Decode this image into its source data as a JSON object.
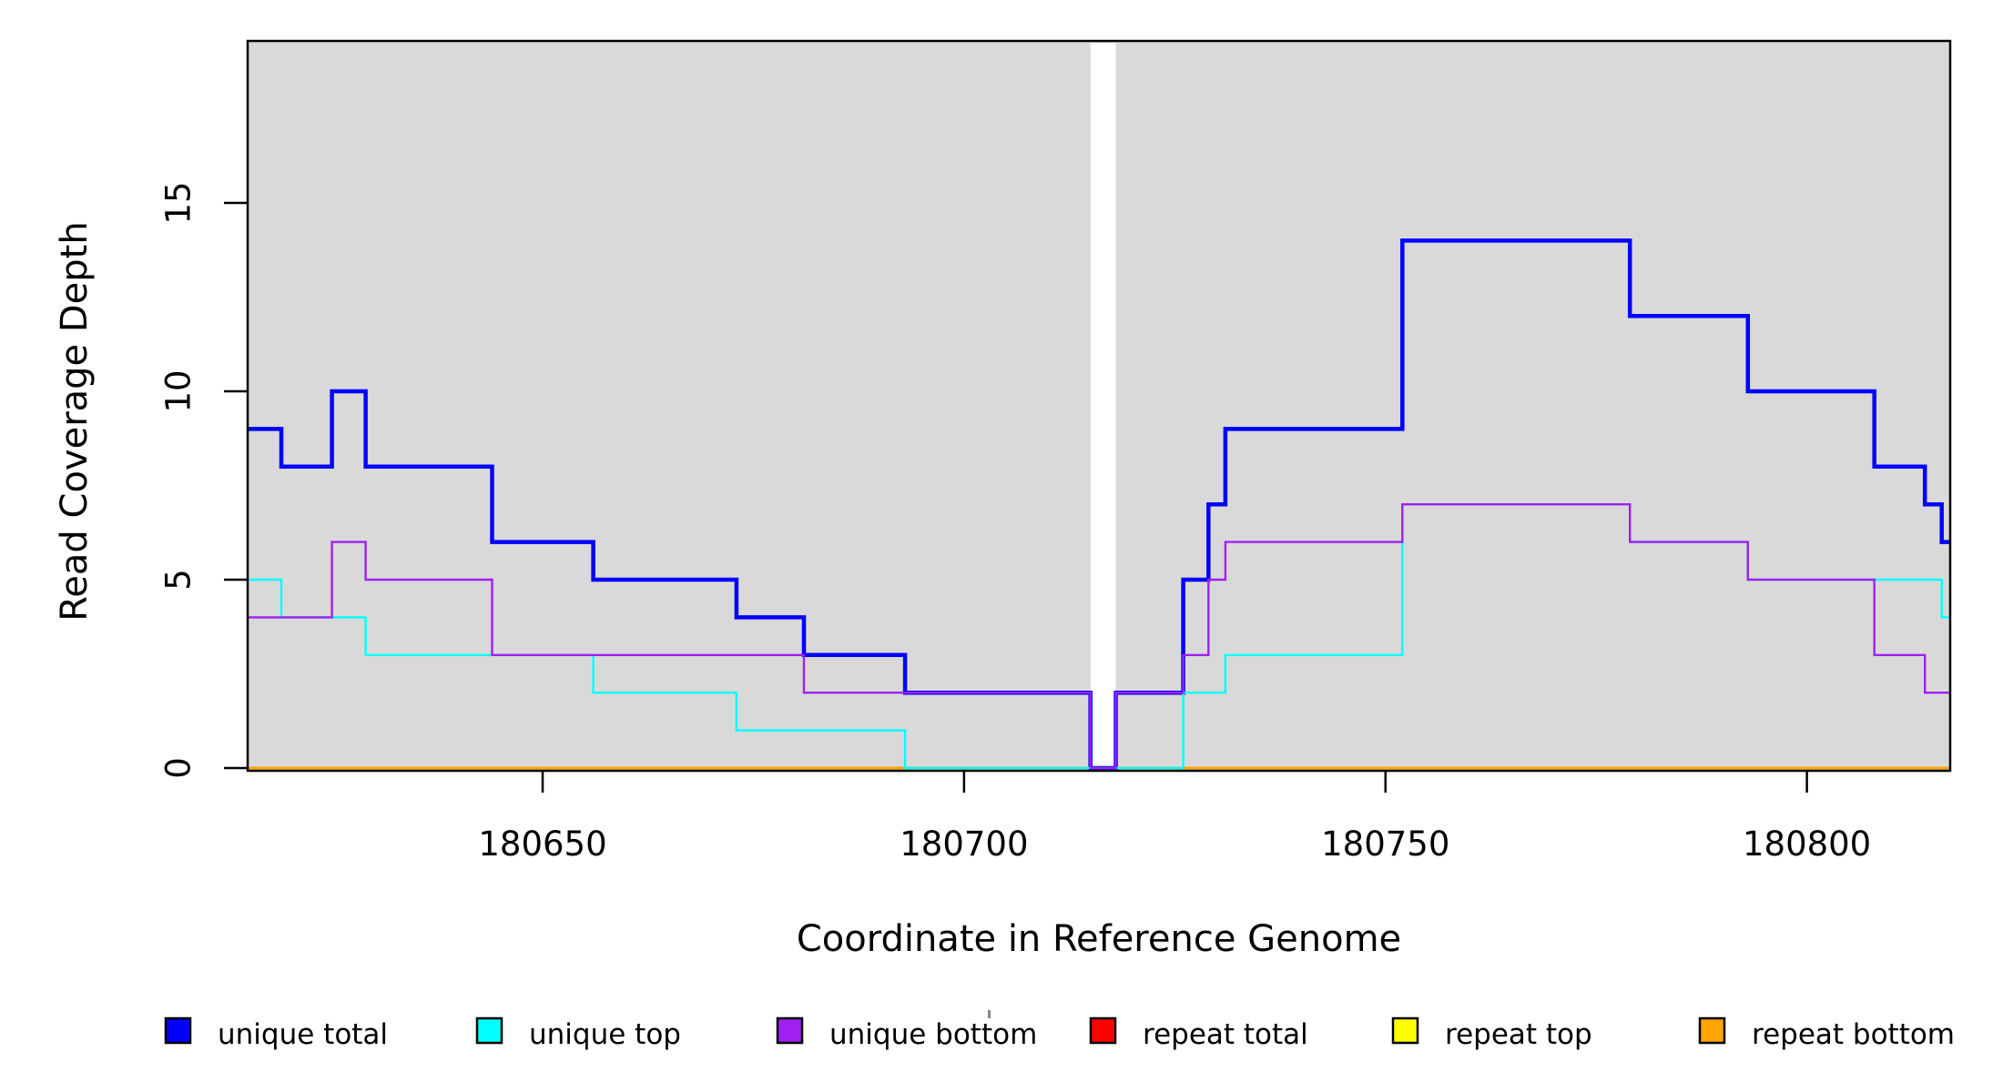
{
  "figure": {
    "background_color": "#FFFFFF",
    "panel_background_color": "#D9D9D9",
    "panel_border_color": "#000000",
    "gap_band_color": "#FFFFFF"
  },
  "chart_data": {
    "type": "line",
    "subtype": "step-post",
    "title": "",
    "xlabel": "Coordinate in Reference Genome",
    "ylabel": "Read Coverage Depth",
    "xlim": [
      180615,
      180817
    ],
    "ylim": [
      0,
      19.3
    ],
    "x_ticks": [
      180650,
      180700,
      180750,
      180800
    ],
    "y_ticks": [
      0,
      5,
      10,
      15
    ],
    "grid": "off",
    "legend_position": "bottom-horizontal",
    "gap_region": {
      "from": 180715,
      "to": 180718
    },
    "series": [
      {
        "name": "unique total",
        "color": "#0000FF",
        "line_width": 4.5,
        "points": [
          [
            180615,
            9
          ],
          [
            180619,
            8
          ],
          [
            180625,
            10
          ],
          [
            180629,
            8
          ],
          [
            180644,
            6
          ],
          [
            180656,
            5
          ],
          [
            180673,
            4
          ],
          [
            180681,
            3
          ],
          [
            180693,
            2
          ],
          [
            180715,
            0
          ],
          [
            180718,
            2
          ],
          [
            180726,
            5
          ],
          [
            180729,
            7
          ],
          [
            180731,
            9
          ],
          [
            180752,
            14
          ],
          [
            180779,
            12
          ],
          [
            180793,
            10
          ],
          [
            180808,
            8
          ],
          [
            180814,
            7
          ],
          [
            180816,
            6
          ],
          [
            180817,
            6
          ]
        ]
      },
      {
        "name": "unique top",
        "color": "#00FFFF",
        "line_width": 2.4,
        "points": [
          [
            180615,
            5
          ],
          [
            180619,
            4
          ],
          [
            180629,
            3
          ],
          [
            180656,
            2
          ],
          [
            180673,
            1
          ],
          [
            180693,
            0
          ],
          [
            180726,
            2
          ],
          [
            180731,
            3
          ],
          [
            180752,
            7
          ],
          [
            180779,
            6
          ],
          [
            180793,
            5
          ],
          [
            180816,
            4
          ],
          [
            180817,
            4
          ]
        ]
      },
      {
        "name": "unique bottom",
        "color": "#A020F0",
        "line_width": 2.4,
        "points": [
          [
            180615,
            4
          ],
          [
            180625,
            6
          ],
          [
            180629,
            5
          ],
          [
            180644,
            3
          ],
          [
            180681,
            2
          ],
          [
            180715,
            0
          ],
          [
            180718,
            2
          ],
          [
            180726,
            3
          ],
          [
            180729,
            5
          ],
          [
            180731,
            6
          ],
          [
            180752,
            7
          ],
          [
            180779,
            6
          ],
          [
            180793,
            5
          ],
          [
            180808,
            3
          ],
          [
            180814,
            2
          ],
          [
            180817,
            2
          ]
        ]
      },
      {
        "name": "repeat total",
        "color": "#FF0000",
        "line_width": 2.4,
        "points": [
          [
            180615,
            0
          ],
          [
            180817,
            0
          ]
        ]
      },
      {
        "name": "repeat top",
        "color": "#FFFF00",
        "line_width": 2.4,
        "points": [
          [
            180615,
            0
          ],
          [
            180817,
            0
          ]
        ]
      },
      {
        "name": "repeat bottom",
        "color": "#FFA500",
        "line_width": 2.4,
        "points": [
          [
            180615,
            0
          ],
          [
            180817,
            0
          ]
        ]
      }
    ],
    "draw_order": [
      "repeat total",
      "repeat top",
      "repeat bottom",
      "unique total",
      "unique top",
      "unique bottom"
    ],
    "legend": [
      {
        "label": "unique total",
        "color": "#0000FF"
      },
      {
        "label": "unique top",
        "color": "#00FFFF"
      },
      {
        "label": "unique bottom",
        "color": "#A020F0"
      },
      {
        "label": "repeat total",
        "color": "#FF0000"
      },
      {
        "label": "repeat top",
        "color": "#FFFF00"
      },
      {
        "label": "repeat bottom",
        "color": "#FFA500"
      }
    ]
  }
}
